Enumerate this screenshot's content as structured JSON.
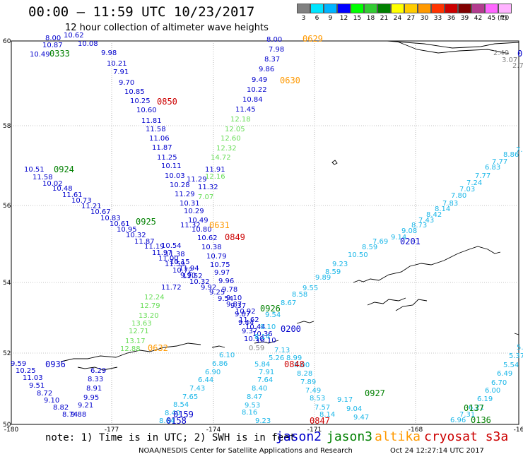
{
  "title": "00:00 – 11:59 UTC 10/23/2017",
  "subtitle": "12 hour collection of altimeter wave heights",
  "legend": {
    "unit": "(ft)",
    "bins": [
      {
        "label": "3",
        "color": "#808080"
      },
      {
        "label": "6",
        "color": "#00e5ff"
      },
      {
        "label": "9",
        "color": "#00b4ff"
      },
      {
        "label": "12",
        "color": "#0000ff"
      },
      {
        "label": "15",
        "color": "#00ff00"
      },
      {
        "label": "18",
        "color": "#33cc33"
      },
      {
        "label": "21",
        "color": "#008000"
      },
      {
        "label": "24",
        "color": "#ffff00"
      },
      {
        "label": "27",
        "color": "#ffcc00"
      },
      {
        "label": "30",
        "color": "#ff9900"
      },
      {
        "label": "33",
        "color": "#ff3300"
      },
      {
        "label": "36",
        "color": "#cc0000"
      },
      {
        "label": "39",
        "color": "#800000"
      },
      {
        "label": "42",
        "color": "#b33b8f"
      },
      {
        "label": "45",
        "color": "#ff66ff"
      },
      {
        "label": "70",
        "color": "#ffb3ff"
      }
    ]
  },
  "axes": {
    "lat_labels": [
      "60",
      "58",
      "56",
      "54",
      "52",
      "50"
    ],
    "lon_labels": [
      "-180",
      "-177",
      "-174",
      "-171",
      "-168",
      "-16"
    ]
  },
  "colors": {
    "jason2": "#0000cc",
    "jason3": "#008000",
    "altika": "#ff9900",
    "cryosat": "#cc0000",
    "pass_time": "#800000",
    "blue": "#0000cc",
    "cyan": "#19b6e8",
    "lightgreen": "#66dd55",
    "gray": "#808080"
  },
  "map": {
    "tracks": [
      {
        "name": "track-a",
        "color": "blue",
        "points": [
          [
            90,
            53,
            "10.62"
          ],
          [
            110,
            65,
            "10.08"
          ],
          [
            143,
            78,
            "9.98"
          ],
          [
            151,
            93,
            "10.21"
          ],
          [
            160,
            105,
            "7.91"
          ],
          [
            168,
            120,
            "9.70"
          ],
          [
            176,
            133,
            "10.85"
          ],
          [
            184,
            146,
            "10.25"
          ],
          [
            193,
            159,
            "10.60"
          ],
          [
            200,
            174,
            "11.81"
          ],
          [
            206,
            186,
            "11.58"
          ],
          [
            211,
            199,
            "11.06"
          ],
          [
            215,
            212,
            "11.87"
          ],
          [
            222,
            226,
            "11.25"
          ],
          [
            228,
            238,
            "10.11"
          ],
          [
            233,
            252,
            "10.03"
          ],
          [
            240,
            265,
            "10.28"
          ],
          [
            247,
            278,
            "11.29"
          ],
          [
            254,
            291,
            "10.31"
          ],
          [
            260,
            302,
            "10.29"
          ],
          [
            266,
            315,
            "10.49"
          ],
          [
            271,
            328,
            "10.80"
          ],
          [
            279,
            340,
            "10.62"
          ],
          [
            285,
            353,
            "10.38"
          ],
          [
            292,
            366,
            "10.79"
          ],
          [
            297,
            378,
            "10.75"
          ],
          [
            303,
            389,
            "9.97"
          ],
          [
            309,
            401,
            "9.96"
          ],
          [
            314,
            413,
            "9.78"
          ],
          [
            320,
            425,
            "9.10"
          ],
          [
            326,
            436,
            "9.37"
          ],
          [
            332,
            448,
            "9.87"
          ],
          [
            337,
            460,
            "9.44"
          ],
          [
            342,
            472,
            "9.37"
          ],
          [
            345,
            483,
            "10.10"
          ]
        ]
      },
      {
        "name": "track-b",
        "color": "blue",
        "points": [
          [
            34,
            243,
            "10.51"
          ],
          [
            46,
            254,
            "11.58"
          ],
          [
            60,
            263,
            "10.02"
          ],
          [
            74,
            270,
            "10.48"
          ],
          [
            88,
            279,
            "11.61"
          ],
          [
            101,
            287,
            "10.73"
          ],
          [
            115,
            295,
            "11.21"
          ],
          [
            128,
            303,
            "10.67"
          ],
          [
            142,
            312,
            "10.83"
          ],
          [
            155,
            320,
            "10.61"
          ],
          [
            165,
            328,
            "10.95"
          ],
          [
            178,
            336,
            "10.32"
          ],
          [
            190,
            345,
            "11.87"
          ],
          [
            204,
            352,
            "11.19"
          ],
          [
            215,
            361,
            "11.97"
          ],
          [
            224,
            369,
            "11.00"
          ],
          [
            233,
            377,
            "11.59"
          ],
          [
            244,
            386,
            "10.72"
          ],
          [
            255,
            393,
            "9.90"
          ],
          [
            268,
            402,
            "10.32"
          ],
          [
            284,
            410,
            "9.92"
          ],
          [
            296,
            417,
            "9.25"
          ],
          [
            308,
            426,
            "9.54"
          ],
          [
            320,
            434,
            "9.87"
          ],
          [
            333,
            444,
            "10.92"
          ],
          [
            338,
            456,
            "11.62"
          ],
          [
            347,
            466,
            "10.44"
          ],
          [
            357,
            476,
            "10.36"
          ],
          [
            362,
            485,
            "10.10"
          ]
        ]
      },
      {
        "name": "track-c",
        "color": "blue",
        "points": [
          [
            228,
            351,
            "10.54"
          ],
          [
            233,
            363,
            "11.38"
          ],
          [
            240,
            374,
            "10.15"
          ],
          [
            253,
            383,
            "11.94"
          ],
          [
            258,
            394,
            "11.52"
          ],
          [
            228,
            410,
            "11.72"
          ],
          [
            255,
            322,
            "11.32"
          ],
          [
            264,
            257,
            "11.29"
          ],
          [
            280,
            268,
            "11.32"
          ],
          [
            290,
            243,
            "11.91"
          ]
        ]
      },
      {
        "name": "track-d",
        "color": "lightgreen",
        "points": [
          [
            326,
            172,
            "12.18"
          ],
          [
            318,
            186,
            "12.05"
          ],
          [
            312,
            199,
            "12.60"
          ],
          [
            306,
            213,
            "12.32"
          ],
          [
            298,
            226,
            "14.72"
          ],
          [
            290,
            253,
            "12.16"
          ],
          [
            280,
            282,
            "7.07"
          ],
          [
            204,
            424,
            "12.24"
          ],
          [
            198,
            436,
            "12.79"
          ],
          [
            196,
            450,
            "13.20"
          ],
          [
            186,
            461,
            "13.63"
          ],
          [
            182,
            472,
            "12.71"
          ],
          [
            177,
            486,
            "13.17"
          ],
          [
            170,
            497,
            "12.88"
          ]
        ]
      },
      {
        "name": "track-e",
        "color": "blue",
        "points": [
          [
            377,
            59,
            "8.00"
          ],
          [
            380,
            73,
            "7.98"
          ],
          [
            374,
            87,
            "8.37"
          ],
          [
            366,
            101,
            "9.86"
          ],
          [
            356,
            116,
            "9.49"
          ],
          [
            349,
            130,
            "10.22"
          ],
          [
            343,
            144,
            "10.84"
          ],
          [
            333,
            158,
            "11.45"
          ]
        ]
      },
      {
        "name": "track-f",
        "color": "cyan",
        "points": [
          [
            730,
            215,
            "7.7"
          ],
          [
            712,
            222,
            "8.86"
          ],
          [
            696,
            232,
            "7.77"
          ],
          [
            686,
            240,
            "6.83"
          ],
          [
            672,
            252,
            "7.77"
          ],
          [
            660,
            262,
            "7.24"
          ],
          [
            650,
            271,
            "7.03"
          ],
          [
            638,
            280,
            "7.80"
          ],
          [
            626,
            291,
            "7.83"
          ],
          [
            615,
            299,
            "8.14"
          ],
          [
            603,
            307,
            "8.42"
          ],
          [
            592,
            315,
            "7.43"
          ],
          [
            582,
            322,
            "8.73"
          ],
          [
            568,
            330,
            "9.08"
          ],
          [
            553,
            339,
            "9.14"
          ],
          [
            527,
            345,
            "7.69"
          ],
          [
            512,
            353,
            "8.59"
          ],
          [
            492,
            364,
            "10.50"
          ],
          [
            470,
            377,
            "9.23"
          ],
          [
            460,
            388,
            "8.59"
          ],
          [
            446,
            396,
            "9.89"
          ],
          [
            428,
            411,
            "9.55"
          ],
          [
            413,
            420,
            "8.58"
          ],
          [
            397,
            432,
            "8.67"
          ],
          [
            375,
            449,
            "9.54"
          ],
          [
            368,
            466,
            "9.10"
          ],
          [
            360,
            480,
            "8.14"
          ]
        ]
      },
      {
        "name": "track-g",
        "color": "cyan",
        "points": [
          [
            388,
            499,
            "7.13"
          ],
          [
            380,
            510,
            "5.26"
          ],
          [
            360,
            519,
            "5.84"
          ],
          [
            366,
            530,
            "7.91"
          ],
          [
            364,
            541,
            "7.64"
          ],
          [
            356,
            553,
            "8.40"
          ],
          [
            349,
            565,
            "8.47"
          ],
          [
            346,
            577,
            "9.53"
          ],
          [
            342,
            587,
            "8.16"
          ],
          [
            361,
            599,
            "9.23"
          ]
        ]
      },
      {
        "name": "track-h",
        "color": "cyan",
        "points": [
          [
            405,
            510,
            "8.99"
          ],
          [
            416,
            520,
            "8.00"
          ],
          [
            420,
            532,
            "8.28"
          ],
          [
            425,
            544,
            "7.89"
          ],
          [
            432,
            556,
            "7.49"
          ],
          [
            438,
            567,
            "8.53"
          ],
          [
            445,
            580,
            "7.57"
          ],
          [
            452,
            590,
            "8.14"
          ],
          [
            477,
            569,
            "9.17"
          ],
          [
            490,
            582,
            "9.04"
          ],
          [
            500,
            594,
            "9.47"
          ]
        ]
      },
      {
        "name": "track-i",
        "color": "cyan",
        "points": [
          [
            310,
            506,
            "6.10"
          ],
          [
            300,
            518,
            "6.86"
          ],
          [
            290,
            530,
            "6.90"
          ],
          [
            280,
            541,
            "6.44"
          ],
          [
            268,
            553,
            "7.43"
          ],
          [
            258,
            565,
            "7.65"
          ],
          [
            245,
            576,
            "8.54"
          ],
          [
            233,
            588,
            "8.40"
          ],
          [
            225,
            599,
            "8.64"
          ]
        ]
      },
      {
        "name": "track-j",
        "color": "blue",
        "points": [
          [
            15,
            518,
            "9.59"
          ],
          [
            22,
            528,
            "10.25"
          ],
          [
            32,
            538,
            "11.03"
          ],
          [
            41,
            549,
            "9.51"
          ],
          [
            52,
            560,
            "8.72"
          ],
          [
            62,
            570,
            "9.10"
          ],
          [
            75,
            580,
            "8.82"
          ],
          [
            88,
            590,
            "8.74"
          ],
          [
            100,
            590,
            "9.88"
          ],
          [
            110,
            577,
            "9.21"
          ],
          [
            118,
            566,
            "9.95"
          ],
          [
            122,
            553,
            "8.91"
          ],
          [
            124,
            540,
            "8.33"
          ],
          [
            128,
            528,
            "6.29"
          ]
        ]
      },
      {
        "name": "track-k",
        "color": "cyan",
        "points": [
          [
            731,
            495,
            "5.7"
          ],
          [
            720,
            507,
            "5.37"
          ],
          [
            712,
            520,
            "5.54"
          ],
          [
            703,
            532,
            "6.49"
          ],
          [
            695,
            545,
            "6.70"
          ],
          [
            686,
            556,
            "6.00"
          ],
          [
            675,
            568,
            "6.19"
          ],
          [
            663,
            580,
            "6.21"
          ],
          [
            650,
            590,
            "7.31"
          ],
          [
            637,
            598,
            "6.96"
          ]
        ]
      },
      {
        "name": "track-l",
        "color": "blue",
        "points": [
          [
            60,
            67,
            "10.87"
          ],
          [
            42,
            80,
            "10.49"
          ],
          [
            64,
            57,
            "8.00"
          ]
        ]
      }
    ],
    "gray_labels": [
      [
        698,
        78,
        "2.49"
      ],
      [
        710,
        88,
        "3.07"
      ],
      [
        725,
        96,
        "2.7"
      ],
      [
        352,
        496,
        "0.59"
      ]
    ],
    "times": [
      [
        70,
        80,
        "0333",
        "jason3"
      ],
      [
        428,
        59,
        "0629",
        "altika"
      ],
      [
        396,
        118,
        "0630",
        "altika"
      ],
      [
        222,
        148,
        "0850",
        "cryosat"
      ],
      [
        76,
        244,
        "0924",
        "jason3"
      ],
      [
        192,
        318,
        "0925",
        "jason3"
      ],
      [
        296,
        323,
        "0631",
        "altika"
      ],
      [
        318,
        340,
        "0849",
        "cryosat"
      ],
      [
        566,
        346,
        "0201",
        "jason2"
      ],
      [
        368,
        441,
        "0926",
        "jason3"
      ],
      [
        397,
        470,
        "0200",
        "jason2"
      ],
      [
        209,
        497,
        "0632",
        "altika"
      ],
      [
        402,
        520,
        "0848",
        "cryosat"
      ],
      [
        64,
        520,
        "0936",
        "jason2"
      ],
      [
        516,
        561,
        "0927",
        "jason3"
      ],
      [
        245,
        591,
        "0159",
        "jason2"
      ],
      [
        235,
        600,
        "0158",
        "jason2"
      ],
      [
        438,
        600,
        "0847",
        "cryosat"
      ],
      [
        656,
        582,
        "0137",
        "jason3"
      ],
      [
        666,
        599,
        "0136",
        "jason3"
      ],
      [
        732,
        80,
        "07",
        "jason2"
      ]
    ]
  },
  "footer": {
    "note": "note: 1) Time is in UTC; 2) SWH is in feet",
    "satellites": [
      {
        "label": "jason2",
        "color_key": "jason2"
      },
      {
        "label": "jason3",
        "color_key": "jason3"
      },
      {
        "label": "altika",
        "color_key": "altika"
      },
      {
        "label": "cryosat s3a",
        "color_key": "cryosat"
      }
    ],
    "credit": "NOAA/NESDIS Center for Satellite Applications and Research",
    "date": "Oct 24 12:27:14 UTC 2017"
  }
}
